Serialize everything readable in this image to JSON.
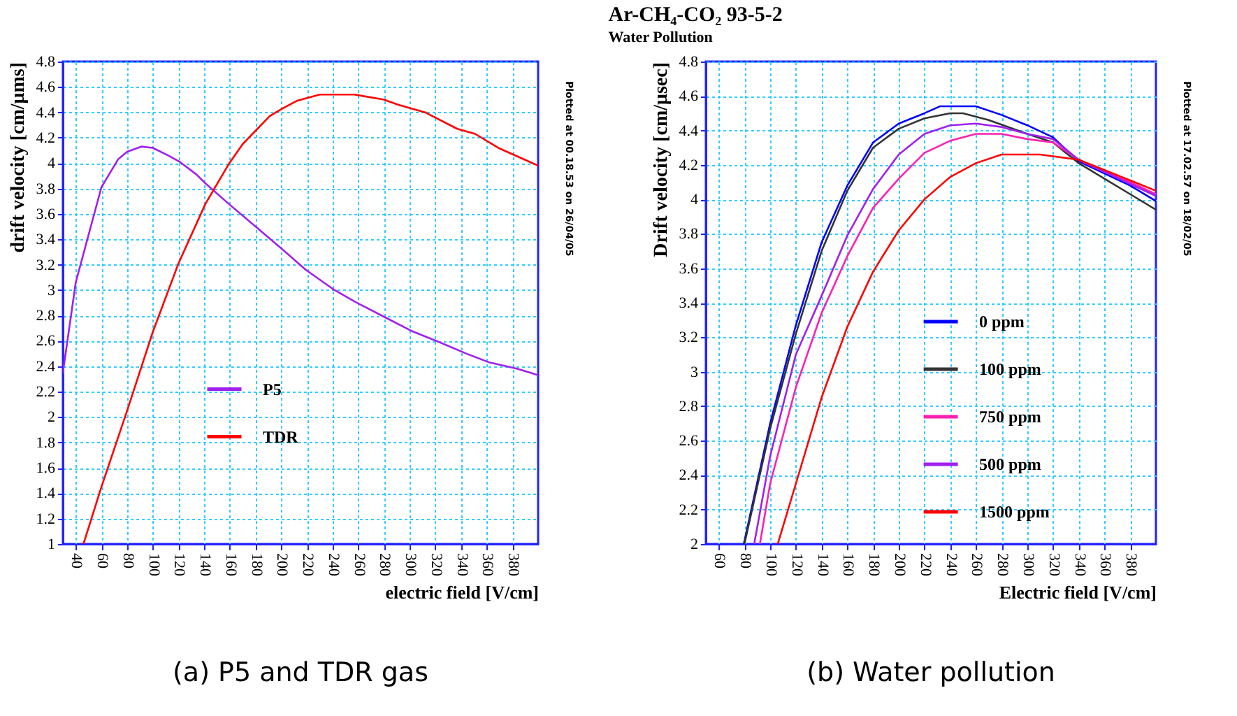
{
  "chart_data": [
    {
      "type": "line",
      "xlabel": "electric field [V/cm]",
      "ylabel": "drift velocity [cm/μms]",
      "xlim": [
        30,
        400
      ],
      "ylim": [
        1,
        4.8
      ],
      "xticks": [
        40,
        60,
        80,
        100,
        120,
        140,
        160,
        180,
        200,
        220,
        240,
        260,
        280,
        300,
        320,
        340,
        360,
        380
      ],
      "yticks": [
        1,
        1.2,
        1.4,
        1.6,
        1.8,
        2,
        2.2,
        2.4,
        2.6,
        2.8,
        3,
        3.2,
        3.4,
        3.6,
        3.8,
        4,
        4.2,
        4.4,
        4.6,
        4.8
      ],
      "grid": true,
      "legend": "bottom left",
      "annotations": [
        "Plotted at 00.18.53 on 26/04/05",
        "(a) P5 and TDR gas"
      ],
      "series": [
        {
          "name": "P5",
          "color": "#a020f0",
          "x": [
            30,
            40,
            60,
            73,
            80,
            91,
            100,
            112,
            121,
            134,
            141,
            159,
            180,
            201,
            219,
            240,
            257,
            280,
            301,
            323,
            344,
            362,
            384,
            400
          ],
          "values": [
            2.35,
            3.06,
            3.81,
            4.03,
            4.09,
            4.13,
            4.12,
            4.06,
            4.01,
            3.91,
            3.84,
            3.68,
            3.5,
            3.32,
            3.16,
            3.01,
            2.91,
            2.79,
            2.68,
            2.59,
            2.5,
            2.43,
            2.38,
            2.33
          ]
        },
        {
          "name": "TDR",
          "color": "#ff0000",
          "x": [
            46,
            60,
            80,
            100,
            120,
            141,
            159,
            170,
            191,
            201,
            212,
            230,
            257,
            280,
            291,
            312,
            337,
            351,
            369,
            400
          ],
          "values": [
            1,
            1.45,
            2.05,
            2.67,
            3.21,
            3.68,
            3.99,
            4.15,
            4.37,
            4.43,
            4.49,
            4.54,
            4.54,
            4.5,
            4.46,
            4.4,
            4.27,
            4.23,
            4.12,
            3.98
          ]
        }
      ]
    },
    {
      "type": "line",
      "title": "Ar-CH₄-CO₂ 93-5-2",
      "subtitle": "Water Pollution",
      "xlabel": "Electric field [V/cm]",
      "ylabel": "Drift velocity [cm/μsec]",
      "xlim": [
        50,
        400
      ],
      "ylim": [
        2,
        4.8
      ],
      "xticks": [
        60,
        80,
        100,
        120,
        140,
        160,
        180,
        200,
        220,
        240,
        260,
        280,
        300,
        320,
        340,
        360,
        380
      ],
      "yticks": [
        2,
        2.2,
        2.4,
        2.6,
        2.8,
        3,
        3.2,
        3.4,
        3.6,
        3.8,
        4,
        4.2,
        4.4,
        4.6,
        4.8
      ],
      "grid": true,
      "legend": "bottom right",
      "annotations": [
        "Plotted at 17.02.57 on 18/02/05",
        "(b) Water pollution"
      ],
      "series": [
        {
          "name": "0 ppm",
          "color": "#0000ff",
          "x": [
            79.5,
            100,
            120,
            140,
            160,
            180,
            200,
            220,
            232,
            260,
            280,
            300,
            320,
            340,
            360,
            380,
            400
          ],
          "values": [
            2,
            2.7,
            3.27,
            3.75,
            4.08,
            4.33,
            4.44,
            4.5,
            4.54,
            4.54,
            4.49,
            4.43,
            4.36,
            4.22,
            4.15,
            4.08,
            3.99
          ]
        },
        {
          "name": "100 ppm",
          "color": "#333333",
          "x": [
            80,
            100,
            120,
            140,
            160,
            180,
            200,
            220,
            240,
            250,
            270,
            300,
            320,
            340,
            360,
            380,
            400
          ],
          "values": [
            2,
            2.67,
            3.22,
            3.7,
            4.05,
            4.3,
            4.41,
            4.47,
            4.5,
            4.5,
            4.46,
            4.38,
            4.33,
            4.21,
            4.12,
            4.03,
            3.94
          ]
        },
        {
          "name": "750 ppm",
          "color": "#ff20b0",
          "x": [
            92,
            100,
            120,
            140,
            160,
            180,
            200,
            220,
            240,
            260,
            280,
            300,
            320,
            340,
            360,
            380,
            400
          ],
          "values": [
            2,
            2.35,
            2.91,
            3.34,
            3.67,
            3.95,
            4.12,
            4.27,
            4.34,
            4.38,
            4.38,
            4.35,
            4.33,
            4.23,
            4.16,
            4.1,
            4.03
          ]
        },
        {
          "name": "500 ppm",
          "color": "#a020f0",
          "x": [
            87.6,
            100,
            120,
            140,
            160,
            180,
            200,
            220,
            240,
            260,
            280,
            300,
            320,
            340,
            360,
            380,
            400
          ],
          "values": [
            2,
            2.51,
            3.1,
            3.44,
            3.79,
            4.06,
            4.26,
            4.38,
            4.43,
            4.44,
            4.42,
            4.38,
            4.35,
            4.23,
            4.16,
            4.09,
            4.02
          ]
        },
        {
          "name": "1500 ppm",
          "color": "#ff0000",
          "x": [
            105.9,
            120,
            140,
            160,
            180,
            200,
            220,
            240,
            260,
            280,
            310,
            330,
            340,
            360,
            380,
            400
          ],
          "values": [
            2,
            2.35,
            2.85,
            3.26,
            3.58,
            3.82,
            4,
            4.13,
            4.21,
            4.26,
            4.26,
            4.24,
            4.23,
            4.17,
            4.11,
            4.05
          ]
        }
      ]
    }
  ]
}
